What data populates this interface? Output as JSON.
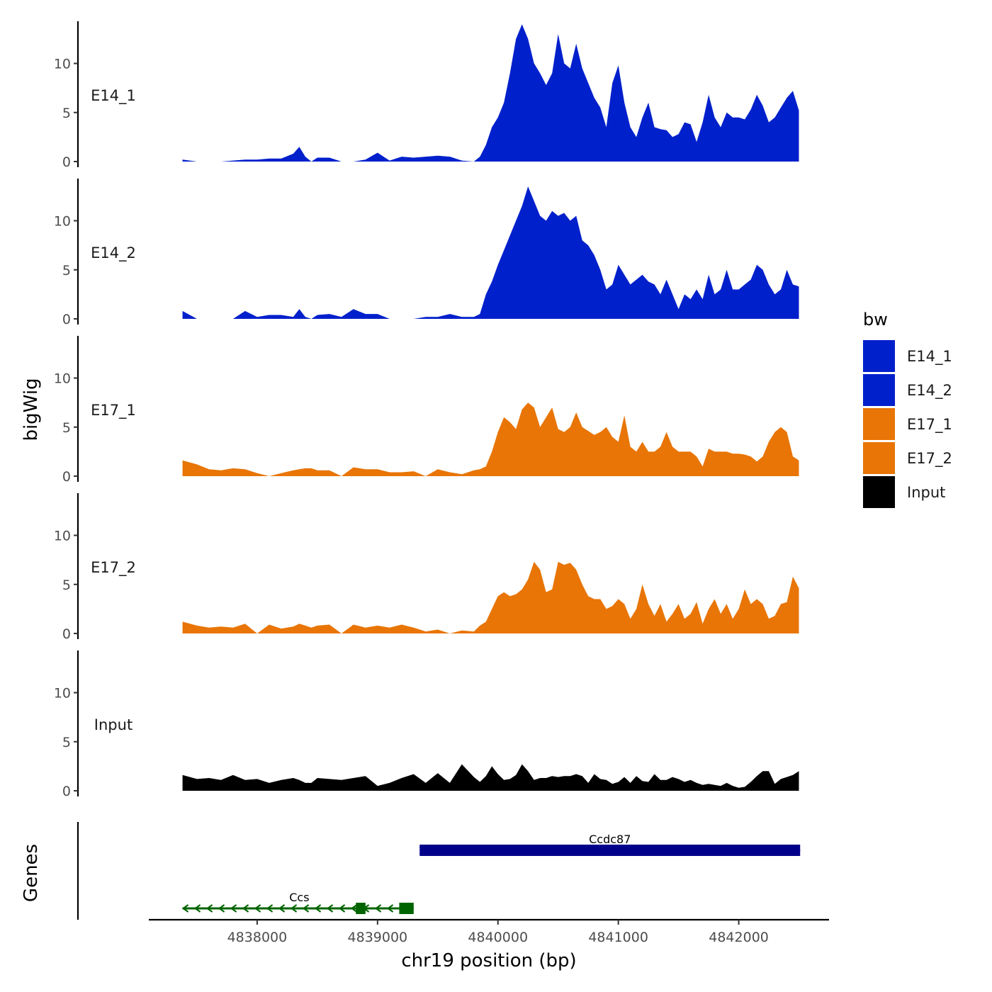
{
  "chart_data": {
    "type": "area",
    "title": "",
    "xlabel": "chr19 position (bp)",
    "ylabel": "bigWig",
    "gene_track_label": "Genes",
    "xlim": [
      4837100,
      4842750
    ],
    "ylim": [
      0,
      14.3
    ],
    "x_ticks": [
      4838000,
      4839000,
      4840000,
      4841000,
      4842000
    ],
    "x_tick_labels": [
      "4838000",
      "4839000",
      "4840000",
      "4841000",
      "4842000"
    ],
    "y_ticks": [
      0,
      5,
      10
    ],
    "y_tick_labels": [
      "0",
      "5",
      "10"
    ],
    "legend": {
      "title": "bw",
      "position": "right",
      "entries": [
        {
          "label": "E14_1",
          "color": "#0020CC"
        },
        {
          "label": "E14_2",
          "color": "#0020CC"
        },
        {
          "label": "E17_1",
          "color": "#E87506"
        },
        {
          "label": "E17_2",
          "color": "#E87506"
        },
        {
          "label": "Input",
          "color": "#000000"
        }
      ]
    },
    "x": [
      4837380,
      4837500,
      4837600,
      4837700,
      4837800,
      4837900,
      4838000,
      4838100,
      4838200,
      4838300,
      4838350,
      4838400,
      4838450,
      4838500,
      4838600,
      4838700,
      4838800,
      4838900,
      4839000,
      4839100,
      4839200,
      4839300,
      4839400,
      4839500,
      4839600,
      4839700,
      4839800,
      4839850,
      4839900,
      4839950,
      4840000,
      4840050,
      4840100,
      4840150,
      4840200,
      4840250,
      4840300,
      4840350,
      4840400,
      4840450,
      4840500,
      4840550,
      4840600,
      4840650,
      4840700,
      4840750,
      4840800,
      4840850,
      4840900,
      4840950,
      4841000,
      4841050,
      4841100,
      4841150,
      4841200,
      4841250,
      4841300,
      4841350,
      4841400,
      4841450,
      4841500,
      4841550,
      4841600,
      4841650,
      4841700,
      4841750,
      4841800,
      4841850,
      4841900,
      4841950,
      4842000,
      4842050,
      4842100,
      4842150,
      4842200,
      4842250,
      4842300,
      4842350,
      4842400,
      4842450,
      4842500
    ],
    "series": [
      {
        "name": "E14_1",
        "color": "#0020CC",
        "values": [
          0.2,
          0,
          0,
          0,
          0.1,
          0.2,
          0.2,
          0.3,
          0.3,
          0.8,
          1.5,
          0.5,
          0,
          0.4,
          0.4,
          0,
          0,
          0.2,
          0.9,
          0.1,
          0.5,
          0.4,
          0.5,
          0.6,
          0.5,
          0.1,
          0,
          0.5,
          1.7,
          3.5,
          4.5,
          6,
          9,
          12.5,
          14,
          12.5,
          10,
          9,
          7.8,
          9,
          13,
          10,
          9.5,
          12,
          9.5,
          8,
          6.5,
          5.5,
          3.5,
          8,
          9.8,
          6,
          3.5,
          2.5,
          4.5,
          6,
          3.5,
          3.3,
          3.2,
          2.5,
          2.8,
          4,
          3.8,
          2,
          4,
          6.8,
          4.5,
          3.5,
          5,
          4.5,
          4.5,
          4.3,
          5.3,
          6.8,
          5.7,
          4,
          4.5,
          5.5,
          6.5,
          7.2,
          5.2
        ]
      },
      {
        "name": "E14_2",
        "color": "#0020CC",
        "values": [
          0.8,
          0,
          0,
          0,
          0,
          0.8,
          0.2,
          0.4,
          0.4,
          0.2,
          1,
          0.2,
          0,
          0.4,
          0.5,
          0.2,
          1,
          0.5,
          0.5,
          0,
          0,
          0,
          0.2,
          0.2,
          0.5,
          0.2,
          0.2,
          0.5,
          2.5,
          3.8,
          5.5,
          7,
          8.5,
          10,
          11.5,
          13.5,
          12,
          10.5,
          10,
          11,
          10.5,
          10.8,
          10,
          10.5,
          8,
          7.5,
          6.5,
          5,
          3,
          3.5,
          5.5,
          4.5,
          3.5,
          4,
          4.5,
          3.8,
          3.5,
          2.5,
          4,
          2.5,
          1,
          2.5,
          2,
          3,
          2,
          4.5,
          2.5,
          3,
          5,
          3,
          3,
          3.5,
          4,
          5.5,
          5,
          3.5,
          2.5,
          3,
          5,
          3.5,
          3.3
        ]
      },
      {
        "name": "E17_1",
        "color": "#E87506",
        "values": [
          1.6,
          1.2,
          0.7,
          0.6,
          0.8,
          0.7,
          0.3,
          0,
          0.3,
          0.6,
          0.7,
          0.8,
          0.8,
          0.6,
          0.6,
          0,
          0.9,
          0.7,
          0.7,
          0.4,
          0.4,
          0.5,
          0,
          0.7,
          0.4,
          0.2,
          0.6,
          0.7,
          1,
          2.5,
          4.5,
          6,
          5.5,
          4.8,
          6.8,
          7.5,
          7,
          5,
          6,
          7,
          4.8,
          4.5,
          5,
          6.5,
          5,
          4.6,
          4.2,
          4.5,
          5,
          4,
          3.5,
          6.2,
          3,
          2.5,
          3.5,
          2.5,
          2.5,
          3,
          4.5,
          3,
          2.5,
          2.5,
          2.5,
          2,
          1,
          2.8,
          2.5,
          2.5,
          2.5,
          2.3,
          2.3,
          2.2,
          2,
          1.5,
          2,
          3.5,
          4.5,
          5,
          4.5,
          2,
          1.6
        ]
      },
      {
        "name": "E17_2",
        "color": "#E87506",
        "values": [
          1.2,
          0.8,
          0.6,
          0.7,
          0.6,
          1,
          0,
          0.9,
          0.5,
          0.7,
          1,
          0.8,
          0.6,
          0.8,
          0.9,
          0,
          0.9,
          0.6,
          0.8,
          0.6,
          0.9,
          0.6,
          0.2,
          0.4,
          0,
          0.3,
          0.2,
          0.8,
          1.2,
          2.5,
          3.8,
          4.2,
          3.8,
          4,
          4.5,
          5.5,
          7.3,
          6.5,
          4.2,
          4.5,
          7.3,
          7,
          7.2,
          6.5,
          5,
          3.8,
          3.5,
          3.5,
          2.5,
          2.8,
          3.5,
          3,
          1.5,
          2.5,
          5,
          3,
          1.8,
          3,
          1.2,
          2,
          3,
          1.5,
          2,
          3.2,
          1,
          2.5,
          3.5,
          2,
          3,
          1.5,
          2.5,
          4.5,
          3,
          3.5,
          3,
          1.5,
          1.8,
          3,
          3.2,
          5.8,
          4.6
        ]
      },
      {
        "name": "Input",
        "color": "#000000",
        "values": [
          1.6,
          1.2,
          1.3,
          1.1,
          1.6,
          1.1,
          1.2,
          0.8,
          1.1,
          1.3,
          1.1,
          0.8,
          0.8,
          1.3,
          1.2,
          1.1,
          1.3,
          1.5,
          0.5,
          0.8,
          1.3,
          1.7,
          0.8,
          1.8,
          0.8,
          2.7,
          1.4,
          0.9,
          1.5,
          2.5,
          1.7,
          1.1,
          1.2,
          1.6,
          2.7,
          2,
          1.1,
          1.3,
          1.3,
          1.5,
          1.4,
          1.5,
          1.5,
          1.7,
          1.5,
          0.8,
          1.7,
          1.2,
          1.1,
          0.7,
          0.9,
          1.4,
          0.8,
          1.5,
          1,
          0.9,
          1.7,
          1.1,
          1.1,
          1.4,
          1.2,
          0.9,
          1.1,
          0.8,
          0.6,
          0.7,
          0.6,
          0.5,
          0.8,
          0.5,
          0.3,
          0.4,
          0.9,
          1.5,
          2,
          2,
          0.7,
          1.2,
          1.4,
          1.6,
          2
        ]
      }
    ],
    "genes": [
      {
        "name": "Ccdc87",
        "color": "#00008B",
        "strand": "+",
        "start": 4839350,
        "end": 4842510,
        "exons": [
          [
            4839350,
            4842510
          ]
        ]
      },
      {
        "name": "Ccs",
        "color": "#006400",
        "strand": "-",
        "start": 4837380,
        "end": 4839300,
        "exons": [
          [
            4838820,
            4838900
          ],
          [
            4839180,
            4839300
          ]
        ]
      }
    ]
  }
}
